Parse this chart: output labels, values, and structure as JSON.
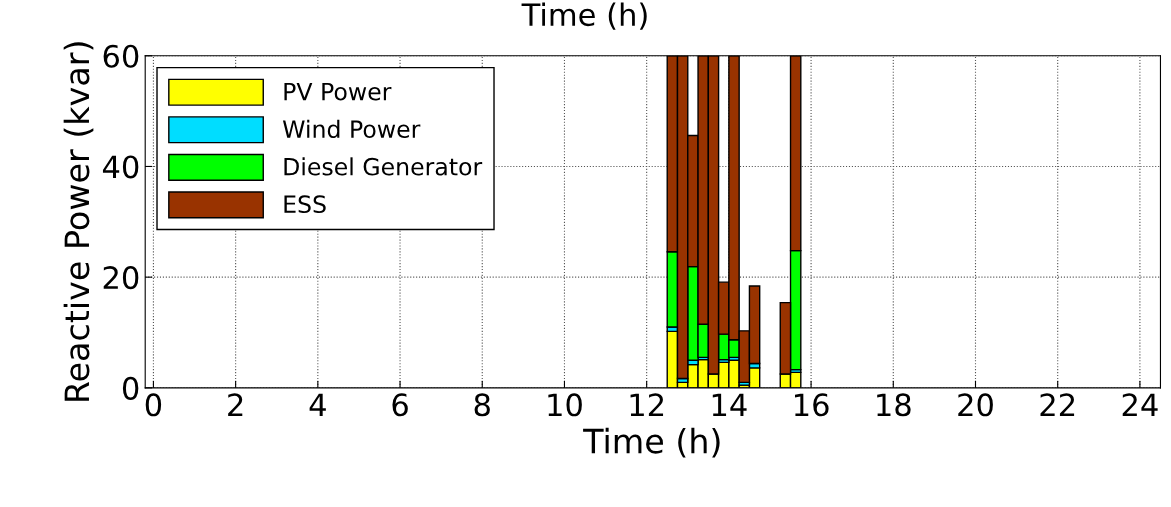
{
  "chart_data": {
    "type": "bar",
    "stacked": true,
    "xlabel": "Time (h)",
    "ylabel": "Reactive Power (kvar)",
    "annotations": [
      "Time (h)"
    ],
    "x": [
      12.625,
      12.875,
      13.125,
      13.375,
      13.625,
      13.875,
      14.125,
      14.375,
      14.625,
      15.375,
      15.625
    ],
    "series": [
      {
        "name": "PV Power",
        "color": "#ffff00",
        "values": [
          10.2,
          1.0,
          4.2,
          5.1,
          2.5,
          4.6,
          5.0,
          0.5,
          3.6,
          2.5,
          2.8
        ]
      },
      {
        "name": "Wind Power",
        "color": "#00ddff",
        "values": [
          0.8,
          0.7,
          0.8,
          0.4,
          null,
          0.5,
          0.5,
          0.5,
          0.8,
          null,
          0.5
        ]
      },
      {
        "name": "Diesel Generator",
        "color": "#00ff00",
        "values": [
          13.6,
          null,
          16.9,
          6.0,
          null,
          4.6,
          3.2,
          null,
          null,
          null,
          21.5
        ]
      },
      {
        "name": "ESS",
        "color": "#993300",
        "values": [
          35.4,
          58.3,
          23.7,
          48.5,
          57.5,
          9.4,
          51.3,
          9.3,
          14.0,
          12.9,
          35.2
        ]
      }
    ],
    "xlim": [
      -0.2,
      24.5
    ],
    "xticks": [
      0,
      2,
      4,
      6,
      8,
      10,
      12,
      14,
      16,
      18,
      20,
      22,
      24
    ],
    "ylim": [
      0,
      60
    ],
    "yticks": [
      0,
      20,
      40,
      60
    ],
    "grid": true,
    "legend": "top left"
  }
}
